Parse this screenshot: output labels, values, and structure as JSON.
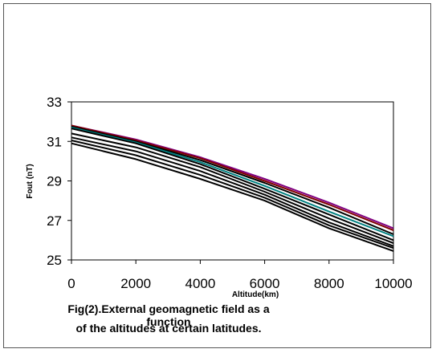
{
  "caption": {
    "line1": "Fig(2).External geomagnetic field as a function",
    "line2": "of the altitudes at certain latitudes."
  },
  "chart_data": {
    "type": "line",
    "xlabel": "Altitude(km)",
    "ylabel": "Fout (nT)",
    "xlim": [
      0,
      10000
    ],
    "ylim": [
      25,
      33
    ],
    "xticks": [
      "0",
      "2000",
      "4000",
      "6000",
      "8000",
      "10000"
    ],
    "yticks": [
      "25",
      "27",
      "29",
      "31",
      "33"
    ],
    "grid": false,
    "legend": "none",
    "x": [
      0,
      2000,
      4000,
      6000,
      8000,
      10000
    ],
    "series": [
      {
        "color": "#800080",
        "values": [
          31.8,
          31.1,
          30.2,
          29.1,
          27.9,
          26.6
        ]
      },
      {
        "color": "#800000",
        "values": [
          31.8,
          31.05,
          30.15,
          29.0,
          27.8,
          26.5
        ]
      },
      {
        "color": "#000000",
        "values": [
          31.75,
          31.0,
          30.05,
          28.9,
          27.65,
          26.3
        ]
      },
      {
        "color": "#008080",
        "values": [
          31.7,
          30.95,
          29.95,
          28.75,
          27.45,
          26.2
        ]
      },
      {
        "color": "#000000",
        "values": [
          31.65,
          30.9,
          29.85,
          28.6,
          27.3,
          26.0
        ]
      },
      {
        "color": "#000000",
        "values": [
          31.4,
          30.7,
          29.7,
          28.45,
          27.1,
          25.85
        ]
      },
      {
        "color": "#000000",
        "values": [
          31.2,
          30.5,
          29.5,
          28.3,
          26.9,
          25.7
        ]
      },
      {
        "color": "#000000",
        "values": [
          31.05,
          30.3,
          29.3,
          28.15,
          26.75,
          25.6
        ]
      },
      {
        "color": "#000000",
        "values": [
          30.9,
          30.1,
          29.1,
          28.0,
          26.6,
          25.45
        ]
      }
    ]
  }
}
